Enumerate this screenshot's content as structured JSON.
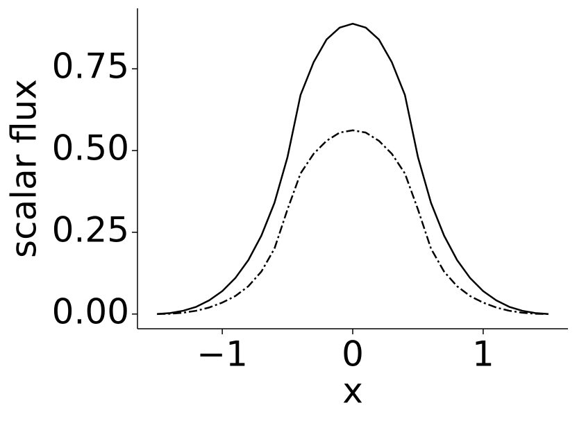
{
  "chart_data": {
    "type": "line",
    "xlabel": "x",
    "ylabel": "scalar flux",
    "x": [
      -1.5,
      -1.4,
      -1.3,
      -1.2,
      -1.1,
      -1.0,
      -0.9,
      -0.8,
      -0.7,
      -0.6,
      -0.5,
      -0.4,
      -0.3,
      -0.2,
      -0.1,
      0,
      0.1,
      0.2,
      0.3,
      0.4,
      0.5,
      0.6,
      0.7,
      0.8,
      0.9,
      1.0,
      1.1,
      1.2,
      1.3,
      1.4,
      1.5
    ],
    "series": [
      {
        "color": "#000000",
        "linestyle": "solid",
        "values": [
          0,
          0.003,
          0.01,
          0.022,
          0.042,
          0.07,
          0.11,
          0.165,
          0.24,
          0.34,
          0.48,
          0.67,
          0.77,
          0.84,
          0.876,
          0.888,
          0.876,
          0.84,
          0.77,
          0.67,
          0.48,
          0.34,
          0.24,
          0.165,
          0.11,
          0.07,
          0.042,
          0.022,
          0.01,
          0.003,
          0
        ]
      },
      {
        "color": "#000000",
        "linestyle": "dashdot",
        "values": [
          0,
          0.001,
          0.004,
          0.01,
          0.02,
          0.035,
          0.055,
          0.085,
          0.13,
          0.2,
          0.32,
          0.43,
          0.49,
          0.53,
          0.555,
          0.562,
          0.555,
          0.53,
          0.49,
          0.43,
          0.32,
          0.2,
          0.13,
          0.085,
          0.055,
          0.035,
          0.02,
          0.01,
          0.004,
          0.001,
          0
        ]
      }
    ],
    "xlim": [
      -1.65,
      1.65
    ],
    "ylim": [
      -0.045,
      0.935
    ],
    "xticks": [
      {
        "value": -1,
        "label": "−1"
      },
      0,
      1
    ],
    "yticks": [
      {
        "value": 0,
        "label": "0.00"
      },
      {
        "value": 0.25,
        "label": "0.25"
      },
      {
        "value": 0.5,
        "label": "0.50"
      },
      {
        "value": 0.75,
        "label": "0.75"
      }
    ],
    "grid": false
  }
}
